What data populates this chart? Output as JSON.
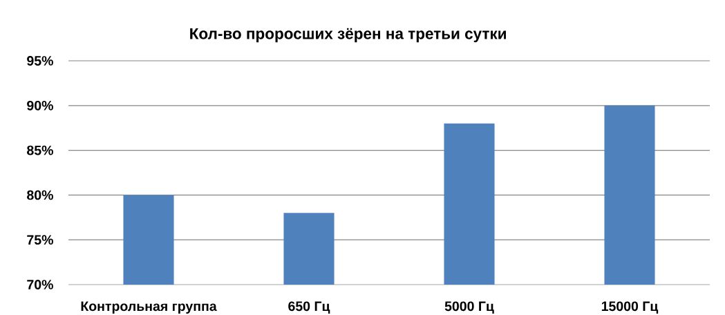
{
  "chart_data": {
    "type": "bar",
    "title": "Кол-во проросших зёрен на третьи сутки",
    "categories": [
      "Контрольная группа",
      "650 Гц",
      "5000 Гц",
      "15000 Гц"
    ],
    "values": [
      80,
      78,
      88,
      90
    ],
    "color": "#4f81bd",
    "ylim": [
      70,
      95
    ],
    "yticks": [
      {
        "value": 70,
        "label": "70%"
      },
      {
        "value": 75,
        "label": "75%"
      },
      {
        "value": 80,
        "label": "80%"
      },
      {
        "value": 85,
        "label": "85%"
      },
      {
        "value": 90,
        "label": "90%"
      },
      {
        "value": 95,
        "label": "95%"
      }
    ],
    "grid": "y"
  }
}
